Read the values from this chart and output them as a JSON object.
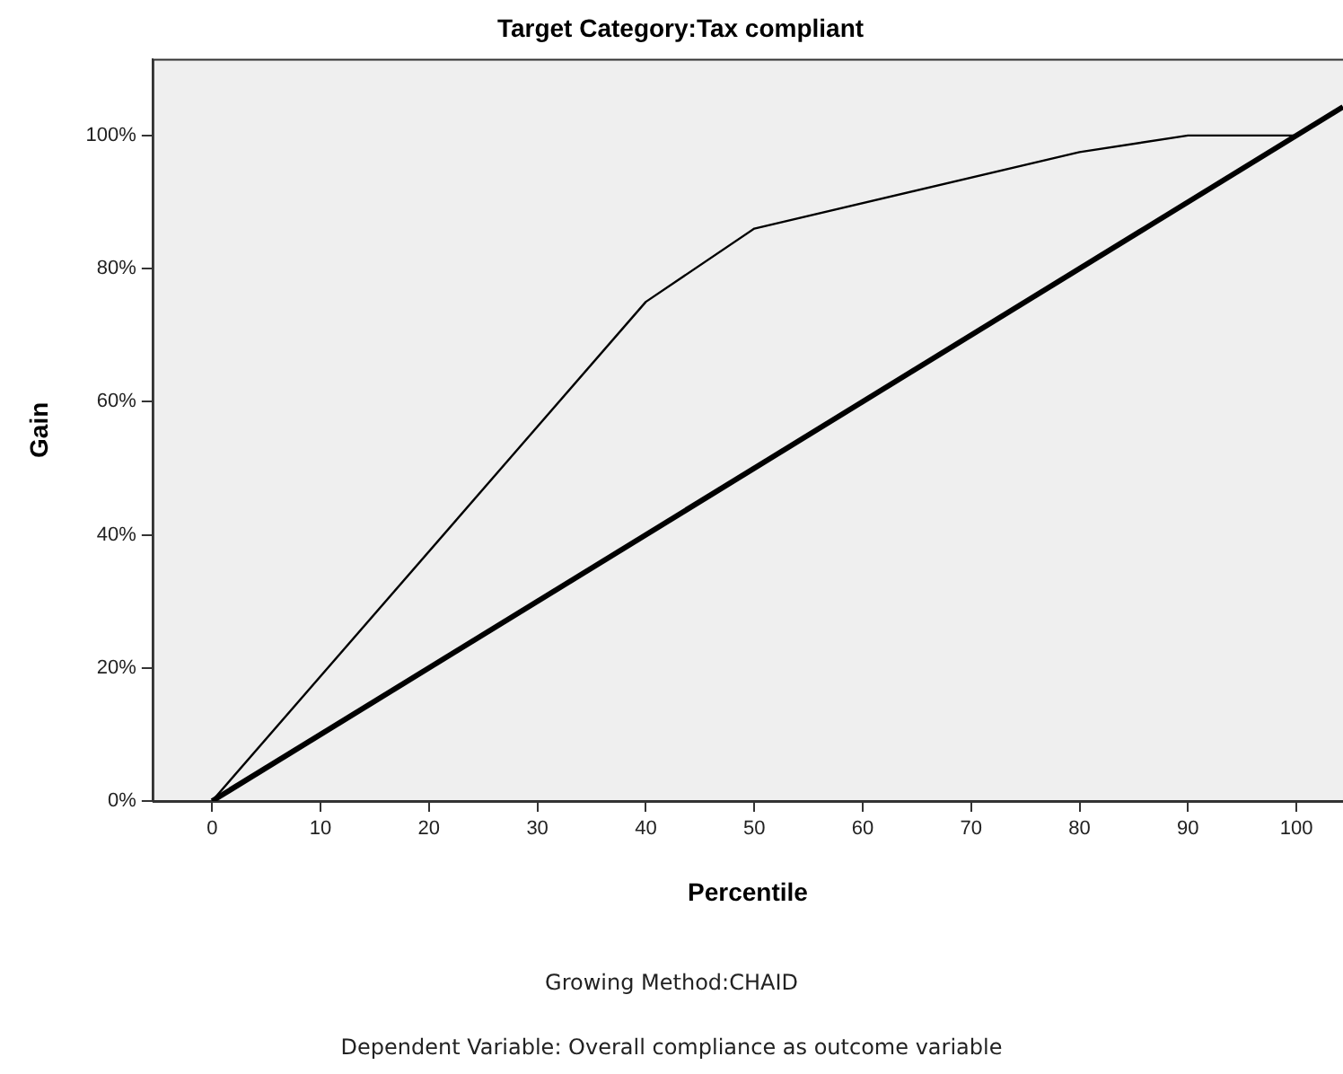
{
  "chart_data": {
    "type": "line",
    "title": "Target Category:Tax compliant",
    "xlabel": "Percentile",
    "ylabel": "Gain",
    "xlim": [
      -5.5,
      104.3
    ],
    "xticks": [
      0,
      10,
      20,
      30,
      40,
      50,
      60,
      70,
      80,
      90,
      100
    ],
    "ylim": [
      0,
      111.5
    ],
    "yticks": [
      {
        "value": 0,
        "label": "0%"
      },
      {
        "value": 20,
        "label": "20%"
      },
      {
        "value": 40,
        "label": "40%"
      },
      {
        "value": 60,
        "label": "60%"
      },
      {
        "value": 80,
        "label": "80%"
      },
      {
        "value": 100,
        "label": "100%"
      }
    ],
    "series": [
      {
        "color": "#000000",
        "x": [
          0,
          40,
          50,
          80,
          90,
          100
        ],
        "values": [
          0,
          75,
          86,
          97.5,
          100,
          100
        ]
      },
      {
        "color": "#000000",
        "x": [
          0,
          104.3
        ],
        "values": [
          0,
          104.3
        ]
      }
    ],
    "grid": false,
    "legend": false,
    "marker": "none",
    "line_style": "solid",
    "annotations": [
      "Growing Method:CHAID",
      "Dependent Variable: Overall compliance as outcome variable"
    ]
  }
}
